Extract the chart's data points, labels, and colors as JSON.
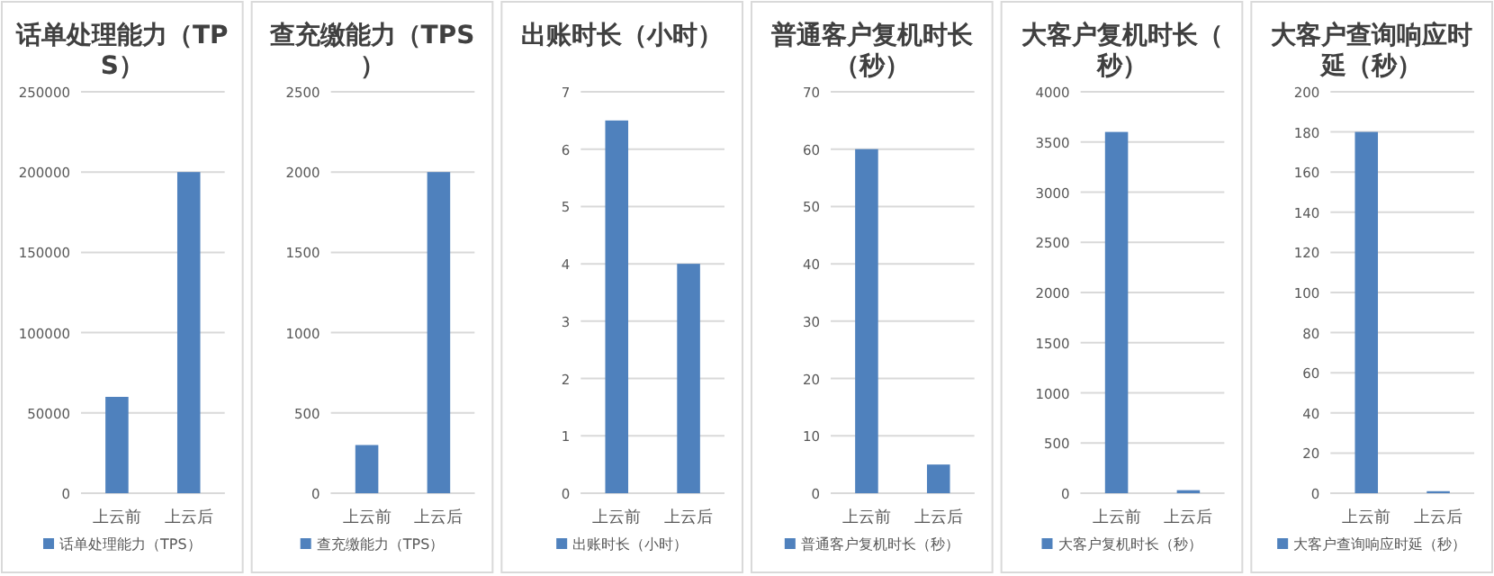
{
  "chart_data": [
    {
      "type": "bar",
      "title": "话单处理能力（TPS）",
      "categories": [
        "上云前",
        "上云后"
      ],
      "series": [
        {
          "name": "话单处理能力（TPS）",
          "color": "#4f81bd",
          "values": [
            60000,
            200000
          ]
        }
      ],
      "ylim": [
        0,
        250000
      ],
      "yticks": [
        0,
        50000,
        100000,
        150000,
        200000,
        250000
      ],
      "grid": "y",
      "legend": "bottom"
    },
    {
      "type": "bar",
      "title": "查充缴能力（TPS）",
      "categories": [
        "上云前",
        "上云后"
      ],
      "series": [
        {
          "name": "查充缴能力（TPS）",
          "color": "#4f81bd",
          "values": [
            300,
            2000
          ]
        }
      ],
      "ylim": [
        0,
        2500
      ],
      "yticks": [
        0,
        500,
        1000,
        1500,
        2000,
        2500
      ],
      "grid": "y",
      "legend": "bottom"
    },
    {
      "type": "bar",
      "title": "出账时长（小时）",
      "categories": [
        "上云前",
        "上云后"
      ],
      "series": [
        {
          "name": "出账时长（小时）",
          "color": "#4f81bd",
          "values": [
            6.5,
            4
          ]
        }
      ],
      "ylim": [
        0,
        7
      ],
      "yticks": [
        0,
        1,
        2,
        3,
        4,
        5,
        6,
        7
      ],
      "grid": "y",
      "legend": "bottom"
    },
    {
      "type": "bar",
      "title": "普通客户复机时长（秒）",
      "categories": [
        "上云前",
        "上云后"
      ],
      "series": [
        {
          "name": "普通客户复机时长（秒）",
          "color": "#4f81bd",
          "values": [
            60,
            5
          ]
        }
      ],
      "ylim": [
        0,
        70
      ],
      "yticks": [
        0,
        10,
        20,
        30,
        40,
        50,
        60,
        70
      ],
      "grid": "y",
      "legend": "bottom"
    },
    {
      "type": "bar",
      "title": "大客户复机时长（秒）",
      "categories": [
        "上云前",
        "上云后"
      ],
      "series": [
        {
          "name": "大客户复机时长（秒）",
          "color": "#4f81bd",
          "values": [
            3600,
            30
          ]
        }
      ],
      "ylim": [
        0,
        4000
      ],
      "yticks": [
        0,
        500,
        1000,
        1500,
        2000,
        2500,
        3000,
        3500,
        4000
      ],
      "grid": "y",
      "legend": "bottom"
    },
    {
      "type": "bar",
      "title": "大客户查询响应时延（秒）",
      "categories": [
        "上云前",
        "上云后"
      ],
      "series": [
        {
          "name": "大客户查询响应时延（秒）",
          "color": "#4f81bd",
          "values": [
            180,
            1
          ]
        }
      ],
      "ylim": [
        0,
        200
      ],
      "yticks": [
        0,
        20,
        40,
        60,
        80,
        100,
        120,
        140,
        160,
        180,
        200
      ],
      "grid": "y",
      "legend": "bottom"
    }
  ]
}
